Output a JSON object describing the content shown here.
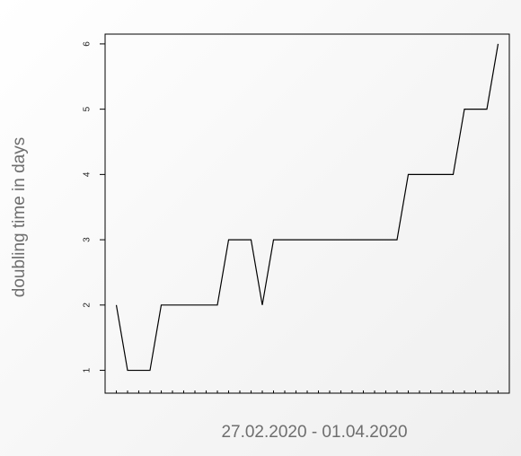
{
  "chart_data": {
    "type": "line",
    "title": "",
    "xlabel": "27.02.2020 - 01.04.2020",
    "ylabel": "doubling time in days",
    "x": [
      1,
      2,
      3,
      4,
      5,
      6,
      7,
      8,
      9,
      10,
      11,
      12,
      13,
      14,
      15,
      16,
      17,
      18,
      19,
      20,
      21,
      22,
      23,
      24,
      25,
      26,
      27,
      28,
      29,
      30,
      31,
      32,
      33,
      34,
      35
    ],
    "series": [
      {
        "values": [
          2,
          1,
          1,
          1,
          2,
          2,
          2,
          2,
          2,
          2,
          3,
          3,
          3,
          2,
          3,
          3,
          3,
          3,
          3,
          3,
          3,
          3,
          3,
          3,
          3,
          3,
          4,
          4,
          4,
          4,
          4,
          5,
          5,
          5,
          6
        ]
      }
    ],
    "xlim": [
      0,
      36
    ],
    "ylim": [
      0.65,
      6.15
    ],
    "yticks": [
      1,
      2,
      3,
      4,
      5,
      6
    ],
    "grid": false,
    "line_color": "#000000"
  }
}
